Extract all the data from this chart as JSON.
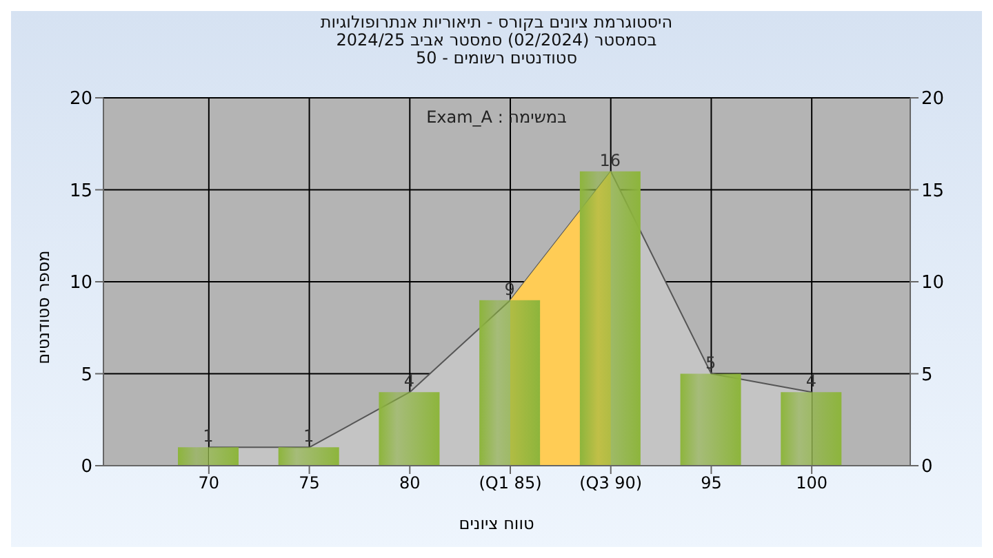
{
  "chart_data": {
    "type": "bar",
    "title": "היסטוגרמת ציונים בקורס - תיאוריות אנתרופולוגיות",
    "subtitle": "בסמסטר  (02/2024)  סמסטר אביב 2024/25\nסטודנטים רשומים - 50",
    "xlabel": "טווח ציונים",
    "ylabel": "מספר סטודנטים",
    "annotations": [
      "במשימה : Exam_A"
    ],
    "categories": [
      "70",
      "75",
      "80",
      "(Q1 85)",
      "(Q3 90)",
      "95",
      "100"
    ],
    "series": [
      {
        "type": "area",
        "color": "#c4c4c4",
        "values": [
          1,
          1,
          4,
          9,
          16,
          5,
          4
        ]
      },
      {
        "type": "area",
        "color": "#ffcc55",
        "values": [
          null,
          null,
          null,
          9,
          16,
          null,
          null
        ]
      },
      {
        "color": "#8db53c",
        "values": [
          1,
          1,
          4,
          9,
          16,
          5,
          4
        ],
        "value_labels": [
          "1",
          "1",
          "4",
          "9",
          "16",
          "5",
          "4"
        ]
      }
    ],
    "ylim": [
      0,
      20
    ],
    "yticks": [
      0,
      5,
      10,
      15,
      20
    ],
    "y2lim": [
      0,
      20
    ],
    "y2ticks": [
      0,
      5,
      10,
      15,
      20
    ],
    "grid": true,
    "legend": false
  }
}
